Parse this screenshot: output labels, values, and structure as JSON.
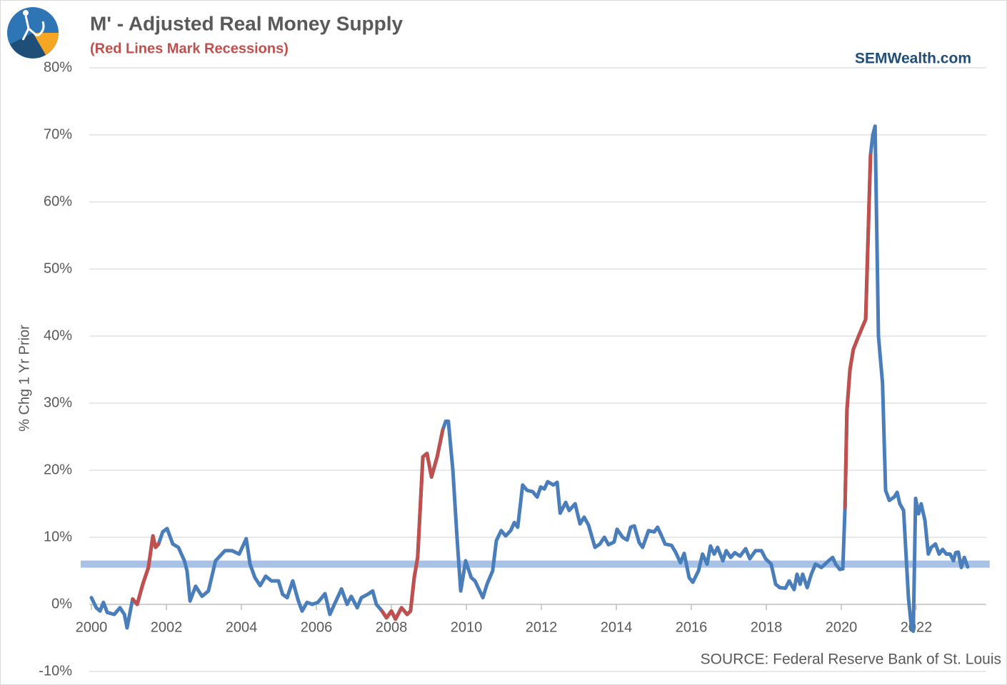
{
  "chart_data": {
    "type": "line",
    "title": "M' - Adjusted Real Money Supply",
    "subtitle": "(Red Lines Mark Recessions)",
    "watermark": "SEMWealth.com",
    "source": "SOURCE:  Federal Reserve Bank of St. Louis",
    "y_label": "% Chg 1 Yr Prior",
    "xlim": [
      2000,
      2023.9
    ],
    "xticks": [
      2000,
      2002,
      2004,
      2006,
      2008,
      2010,
      2012,
      2014,
      2016,
      2018,
      2020,
      2022
    ],
    "ylim": [
      -10,
      80
    ],
    "yticks": [
      {
        "value": -10,
        "label": "-10%"
      },
      {
        "value": 0,
        "label": "0%"
      },
      {
        "value": 10,
        "label": "10%"
      },
      {
        "value": 20,
        "label": "20%"
      },
      {
        "value": 30,
        "label": "30%"
      },
      {
        "value": 40,
        "label": "40%"
      },
      {
        "value": 50,
        "label": "50%"
      },
      {
        "value": 60,
        "label": "60%"
      },
      {
        "value": 70,
        "label": "70%"
      },
      {
        "value": 80,
        "label": "80%"
      }
    ],
    "grid": true,
    "reference_line": {
      "value": 6,
      "color": "#a7c2e4"
    },
    "x": [
      2000.0,
      2000.13,
      2000.23,
      2000.32,
      2000.42,
      2000.61,
      2000.76,
      2000.88,
      2000.95,
      2001.1,
      2001.22,
      2001.37,
      2001.52,
      2001.64,
      2001.71,
      2001.79,
      2001.9,
      2002.02,
      2002.17,
      2002.32,
      2002.48,
      2002.55,
      2002.63,
      2002.78,
      2002.95,
      2003.12,
      2003.31,
      2003.56,
      2003.75,
      2003.94,
      2004.13,
      2004.23,
      2004.36,
      2004.5,
      2004.65,
      2004.8,
      2004.99,
      2005.1,
      2005.22,
      2005.37,
      2005.52,
      2005.62,
      2005.75,
      2005.89,
      2006.04,
      2006.23,
      2006.36,
      2006.48,
      2006.67,
      2006.82,
      2006.93,
      2007.09,
      2007.2,
      2007.37,
      2007.5,
      2007.6,
      2007.75,
      2007.87,
      2008.0,
      2008.11,
      2008.27,
      2008.42,
      2008.51,
      2008.61,
      2008.7,
      2008.84,
      2008.95,
      2009.07,
      2009.22,
      2009.37,
      2009.45,
      2009.52,
      2009.64,
      2009.75,
      2009.85,
      2009.98,
      2010.13,
      2010.23,
      2010.44,
      2010.55,
      2010.7,
      2010.8,
      2010.93,
      2011.05,
      2011.18,
      2011.28,
      2011.37,
      2011.5,
      2011.62,
      2011.77,
      2011.89,
      2011.98,
      2012.08,
      2012.17,
      2012.32,
      2012.42,
      2012.5,
      2012.65,
      2012.74,
      2012.9,
      2013.03,
      2013.14,
      2013.26,
      2013.43,
      2013.56,
      2013.68,
      2013.79,
      2013.94,
      2014.02,
      2014.17,
      2014.29,
      2014.38,
      2014.48,
      2014.61,
      2014.7,
      2014.86,
      2015.01,
      2015.1,
      2015.2,
      2015.3,
      2015.47,
      2015.58,
      2015.71,
      2015.81,
      2015.94,
      2016.04,
      2016.19,
      2016.3,
      2016.42,
      2016.51,
      2016.61,
      2016.7,
      2016.84,
      2016.93,
      2017.05,
      2017.16,
      2017.3,
      2017.45,
      2017.56,
      2017.71,
      2017.87,
      2017.98,
      2018.13,
      2018.25,
      2018.36,
      2018.51,
      2018.61,
      2018.74,
      2018.82,
      2018.9,
      2018.97,
      2019.09,
      2019.2,
      2019.31,
      2019.47,
      2019.66,
      2019.77,
      2019.85,
      2019.96,
      2020.04,
      2020.1,
      2020.15,
      2020.23,
      2020.32,
      2020.46,
      2020.65,
      2020.78,
      2020.84,
      2020.9,
      2020.99,
      2021.1,
      2021.18,
      2021.28,
      2021.41,
      2021.49,
      2021.56,
      2021.66,
      2021.79,
      2021.87,
      2021.92,
      2021.98,
      2022.06,
      2022.13,
      2022.23,
      2022.32,
      2022.4,
      2022.51,
      2022.61,
      2022.7,
      2022.8,
      2022.9,
      2022.99,
      2023.05,
      2023.12,
      2023.2,
      2023.28,
      2023.37
    ],
    "series": [
      {
        "color": "#4a7ebb",
        "values": [
          1,
          -0.5,
          -1,
          0.3,
          -1.2,
          -1.5,
          -0.5,
          -1.5,
          -3.5,
          0.8,
          0,
          3,
          5.5,
          10.2,
          8.5,
          9,
          10.8,
          11.3,
          9,
          8.5,
          6.5,
          5,
          0.5,
          2.7,
          1.2,
          2,
          6.5,
          8,
          8,
          7.5,
          9.8,
          6,
          4,
          2.8,
          4.2,
          3.5,
          3.5,
          1.5,
          1,
          3.5,
          0.5,
          -1,
          0.3,
          0,
          0.3,
          1.6,
          -1.5,
          0,
          2.3,
          0,
          1.2,
          -0.5,
          1,
          1.5,
          2,
          0,
          -1,
          -2,
          -1,
          -2.2,
          -0.5,
          -1.5,
          -1,
          4,
          7,
          22,
          22.5,
          19,
          22,
          26,
          27.3,
          27.3,
          20,
          10,
          2,
          6.5,
          4,
          3.5,
          1,
          3,
          5,
          9.5,
          11,
          10.2,
          11,
          12.2,
          11.5,
          17.8,
          17,
          16.8,
          16,
          17.5,
          17.2,
          18.3,
          17.8,
          18.2,
          13.6,
          15.2,
          14,
          15,
          12,
          13,
          11.8,
          8.5,
          9,
          10,
          8.9,
          9.3,
          11.2,
          10,
          9.6,
          11.5,
          11.7,
          9.2,
          8.5,
          11,
          10.8,
          11.5,
          10.3,
          9,
          8.8,
          7.8,
          6.2,
          7.6,
          4,
          3.3,
          5,
          7.5,
          6,
          8.7,
          7.5,
          8.5,
          6.5,
          8,
          7,
          7.7,
          7.2,
          8.3,
          6.8,
          8,
          8,
          6.8,
          6,
          3,
          2.5,
          2.4,
          3.5,
          2.2,
          4.5,
          3,
          4.5,
          2.5,
          4.5,
          6,
          5.5,
          6.5,
          7,
          6,
          5.2,
          5.3,
          14.5,
          29,
          35,
          38,
          40,
          42.5,
          67,
          70,
          71.3,
          40,
          33,
          17,
          15.5,
          16,
          16.7,
          15,
          14,
          1,
          -3.5,
          -4,
          15.8,
          13.5,
          15,
          12.5,
          7.5,
          8.5,
          9,
          7.5,
          8.2,
          7.5,
          7.5,
          6.5,
          7.7,
          7.8,
          5.5,
          7,
          5.6
        ]
      },
      {
        "color": "#c0504d",
        "x": [
          2001.1,
          2001.22,
          2001.37,
          2001.52,
          2001.64,
          2001.71,
          2001.79
        ],
        "values": [
          0.8,
          0,
          3,
          5.5,
          10.2,
          8.5,
          9
        ]
      },
      {
        "color": "#c0504d",
        "x": [
          2007.75,
          2007.87,
          2008.0,
          2008.11,
          2008.27,
          2008.42,
          2008.51,
          2008.61,
          2008.7,
          2008.84,
          2008.95,
          2009.07,
          2009.22,
          2009.37
        ],
        "values": [
          -1,
          -2,
          -1,
          -2.2,
          -0.5,
          -1.5,
          -1,
          4,
          7,
          22,
          22.5,
          19,
          22,
          26
        ]
      },
      {
        "color": "#c0504d",
        "x": [
          2020.1,
          2020.15,
          2020.23,
          2020.32,
          2020.46,
          2020.65,
          2020.78
        ],
        "values": [
          14.5,
          29,
          35,
          38,
          40,
          42.5,
          67
        ]
      }
    ]
  }
}
